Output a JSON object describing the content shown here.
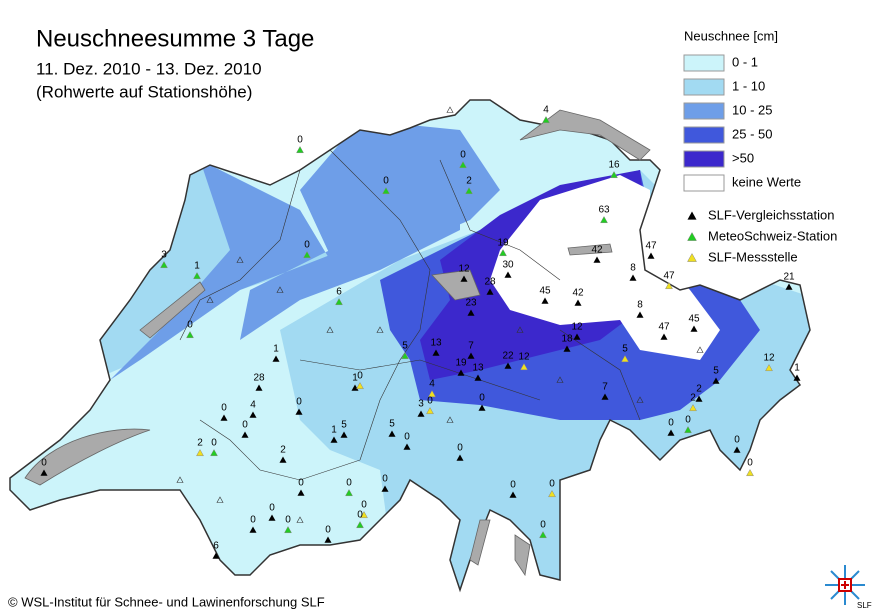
{
  "header": {
    "title": "Neuschneesumme 3 Tage",
    "subtitle_lines": [
      "11. Dez. 2010 - 13. Dez. 2010",
      "(Rohwerte auf Stationshöhe)"
    ]
  },
  "legend": {
    "title": "Neuschnee [cm]",
    "classes": [
      {
        "label": "0 - 1",
        "color": "#ccf4fa"
      },
      {
        "label": "1 - 10",
        "color": "#a2daf2"
      },
      {
        "label": "10 - 25",
        "color": "#6e9ee8"
      },
      {
        "label": "25 - 50",
        "color": "#4058dc"
      },
      {
        "label": ">50",
        "color": "#3c28cc"
      },
      {
        "label": "keine Werte",
        "color": "#ffffff"
      }
    ],
    "station_types": [
      {
        "label": "SLF-Vergleichsstation",
        "color": "#000000"
      },
      {
        "label": "MeteoSchweiz-Station",
        "color": "#22cc22"
      },
      {
        "label": "SLF-Messstelle",
        "color": "#f0e020"
      }
    ]
  },
  "stations": {
    "labels": [
      0,
      4,
      0,
      16,
      0,
      2,
      63,
      19,
      47,
      42,
      0,
      3,
      1,
      30,
      8,
      47,
      12,
      28,
      21,
      6,
      45,
      42,
      23,
      8,
      0,
      45,
      47,
      12,
      18,
      13,
      7,
      5,
      1,
      5,
      22,
      12,
      19,
      13,
      12,
      5,
      1,
      1,
      5,
      0,
      28,
      4,
      7,
      2,
      2,
      0,
      0,
      2,
      3,
      0,
      4,
      0,
      1,
      0,
      5,
      0,
      0,
      0,
      0,
      2,
      0,
      0,
      0,
      0,
      0,
      0,
      0,
      0,
      0,
      0,
      0,
      0,
      0,
      0,
      0,
      0,
      6
    ]
  },
  "footer": {
    "copyright": "© WSL-Institut für Schnee- und Lawinenforschung SLF",
    "logo_text": "SLF"
  }
}
